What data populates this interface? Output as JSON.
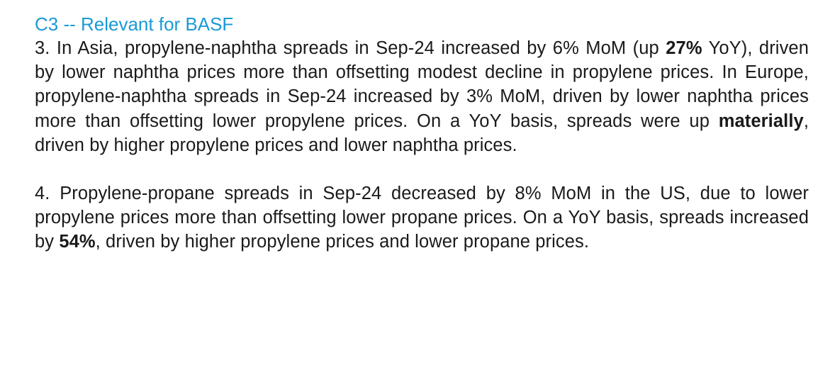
{
  "heading": "C3 -- Relevant for BASF",
  "paragraphs": [
    {
      "parts": [
        {
          "text": "3. In Asia, propylene-naphtha spreads in Sep-24 increased by 6% MoM (up ",
          "bold": false
        },
        {
          "text": "27%",
          "bold": true
        },
        {
          "text": " YoY), driven by lower naphtha prices more than offsetting modest decline in propylene prices. In Europe, propylene-naphtha spreads in Sep-24 increased by 3% MoM, driven by lower naphtha prices more than offsetting lower propylene prices. On a YoY basis, spreads were up ",
          "bold": false
        },
        {
          "text": "materially",
          "bold": true
        },
        {
          "text": ", driven by higher propylene prices and lower naphtha prices.",
          "bold": false
        }
      ]
    },
    {
      "parts": [
        {
          "text": "4. Propylene-propane spreads in Sep-24 decreased by 8% MoM in the US, due to lower propylene prices more than offsetting lower propane prices. On a YoY basis, spreads increased by ",
          "bold": false
        },
        {
          "text": "54%",
          "bold": true
        },
        {
          "text": ", driven by higher propylene prices and lower propane prices.",
          "bold": false
        }
      ]
    }
  ]
}
